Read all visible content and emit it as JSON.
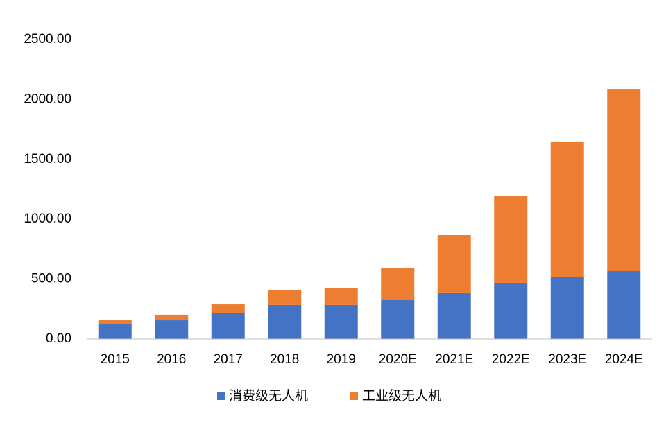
{
  "chart_data": {
    "type": "stacked_bar",
    "categories": [
      "2015",
      "2016",
      "2017",
      "2018",
      "2019",
      "2020E",
      "2021E",
      "2022E",
      "2023E",
      "2024E"
    ],
    "series": [
      {
        "name": "消费级无人机",
        "color": "#4472c4",
        "values": [
          127,
          156,
          220,
          284,
          284,
          324,
          388,
          469,
          515,
          567
        ]
      },
      {
        "name": "工业级无人机",
        "color": "#ed7d31",
        "values": [
          29,
          47,
          69,
          121,
          144,
          272,
          480,
          723,
          1129,
          1516
        ]
      }
    ],
    "ylim": [
      0,
      2500
    ],
    "yticks": [
      {
        "value": 0,
        "label": "0.00"
      },
      {
        "value": 500,
        "label": "500.00"
      },
      {
        "value": 1000,
        "label": "1000.00"
      },
      {
        "value": 1500,
        "label": "1500.00"
      },
      {
        "value": 2000,
        "label": "2000.00"
      },
      {
        "value": 2500,
        "label": "2500.00"
      }
    ],
    "grid": false,
    "legend": "bottom"
  }
}
